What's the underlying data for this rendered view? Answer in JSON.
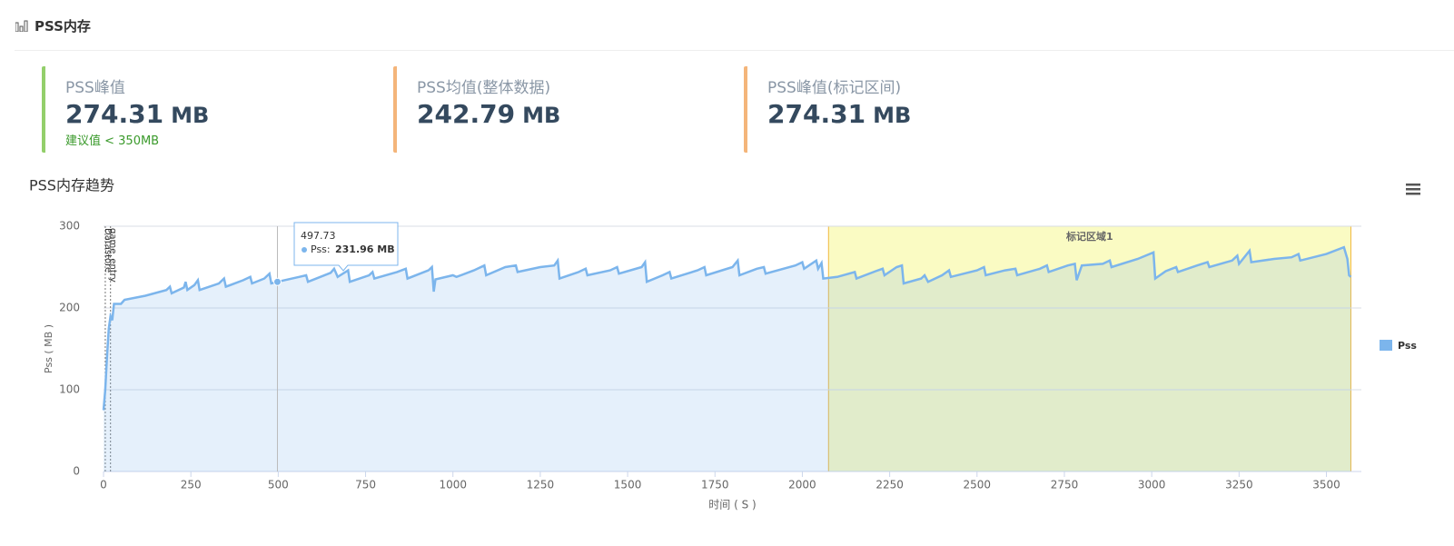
{
  "header": {
    "title": "PSS内存"
  },
  "stats": [
    {
      "label": "PSS峰值",
      "value": "274.31",
      "unit": "MB",
      "hint": "建议值 < 350MB",
      "color": "#93cf6b"
    },
    {
      "label": "PSS均值(整体数据)",
      "value": "242.79",
      "unit": "MB",
      "color": "#f4b57a"
    },
    {
      "label": "PSS峰值(标记区间)",
      "value": "274.31",
      "unit": "MB",
      "color": "#f4b57a"
    }
  ],
  "chart_data": {
    "type": "area",
    "title": "PSS内存趋势",
    "xlabel": "时间 ( S )",
    "ylabel": "Pss ( MB )",
    "xlim": [
      0,
      3600
    ],
    "ylim": [
      0,
      300
    ],
    "xticks": [
      0,
      250,
      500,
      750,
      1000,
      1250,
      1500,
      1750,
      2000,
      2250,
      2500,
      2750,
      3000,
      3250,
      3500
    ],
    "yticks": [
      0,
      100,
      200,
      300
    ],
    "grid": true,
    "legend": "right",
    "band": {
      "from": 2075,
      "to": 3570,
      "label": "标记区域1",
      "color": "#fafbc3",
      "border": "#f0b840"
    },
    "annotations": [
      {
        "x": 5,
        "label": "Datastore"
      },
      {
        "x": 20,
        "label": "game_entry"
      }
    ],
    "tooltip": {
      "x": 497.73,
      "label": "Pss:",
      "value": 231.96,
      "value_label": "231.96 MB"
    },
    "series": [
      {
        "name": "Pss",
        "color": "#7cb5ec",
        "x": [
          0,
          5,
          10,
          15,
          20,
          25,
          30,
          50,
          60,
          120,
          180,
          190,
          195,
          230,
          235,
          240,
          260,
          270,
          275,
          330,
          345,
          350,
          400,
          420,
          425,
          460,
          475,
          480,
          497.73,
          560,
          580,
          585,
          650,
          660,
          670,
          700,
          705,
          760,
          770,
          775,
          840,
          865,
          870,
          930,
          940,
          945,
          950,
          1000,
          1010,
          1060,
          1090,
          1095,
          1150,
          1180,
          1185,
          1250,
          1290,
          1300,
          1305,
          1360,
          1380,
          1385,
          1450,
          1470,
          1475,
          1540,
          1550,
          1555,
          1600,
          1620,
          1625,
          1700,
          1720,
          1725,
          1800,
          1815,
          1820,
          1870,
          1890,
          1895,
          1980,
          2000,
          2005,
          2040,
          2045,
          2055,
          2060,
          2100,
          2150,
          2155,
          2210,
          2230,
          2235,
          2270,
          2285,
          2290,
          2340,
          2350,
          2360,
          2400,
          2420,
          2425,
          2500,
          2520,
          2525,
          2580,
          2610,
          2615,
          2680,
          2700,
          2705,
          2760,
          2780,
          2785,
          2800,
          2860,
          2880,
          2885,
          2960,
          3005,
          3010,
          3040,
          3070,
          3075,
          3130,
          3160,
          3165,
          3230,
          3245,
          3250,
          3280,
          3285,
          3350,
          3400,
          3420,
          3425,
          3500,
          3550,
          3560,
          3565,
          3570
        ],
        "values": [
          75,
          100,
          140,
          175,
          190,
          185,
          205,
          205,
          210,
          215,
          222,
          226,
          218,
          225,
          232,
          222,
          228,
          234,
          222,
          230,
          236,
          226,
          234,
          238,
          230,
          236,
          242,
          230,
          231.96,
          238,
          240,
          232,
          243,
          248,
          238,
          246,
          232,
          240,
          244,
          236,
          244,
          248,
          236,
          246,
          250,
          220,
          235,
          240,
          238,
          246,
          252,
          240,
          250,
          252,
          244,
          250,
          252,
          258,
          236,
          244,
          248,
          240,
          246,
          250,
          242,
          250,
          256,
          232,
          240,
          244,
          236,
          246,
          250,
          240,
          250,
          258,
          240,
          248,
          250,
          242,
          252,
          256,
          248,
          258,
          248,
          255,
          236,
          238,
          244,
          236,
          245,
          248,
          240,
          250,
          252,
          230,
          236,
          240,
          232,
          240,
          246,
          238,
          246,
          250,
          240,
          246,
          248,
          240,
          248,
          252,
          244,
          252,
          254,
          234,
          252,
          254,
          258,
          250,
          260,
          268,
          236,
          245,
          250,
          244,
          252,
          256,
          250,
          258,
          264,
          254,
          270,
          256,
          260,
          262,
          266,
          258,
          266,
          274.31,
          260,
          240,
          238
        ]
      }
    ]
  }
}
